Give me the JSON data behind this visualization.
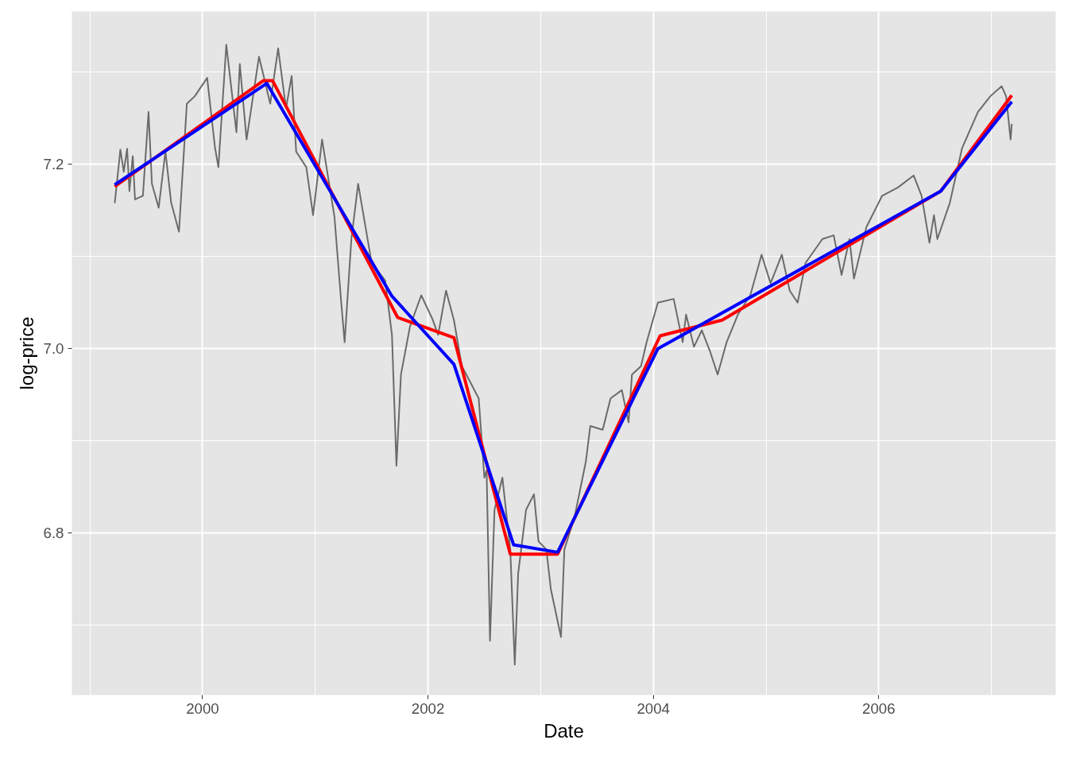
{
  "chart_data": {
    "type": "line",
    "xlabel": "Date",
    "ylabel": "log-price",
    "xlim": [
      1998.84,
      2007.57
    ],
    "ylim": [
      6.624,
      7.366
    ],
    "xticks": [
      {
        "value": 1999,
        "label": null
      },
      2000,
      {
        "value": 2001,
        "label": null
      },
      2002,
      {
        "value": 2003,
        "label": null
      },
      2004,
      {
        "value": 2005,
        "label": null
      },
      2006,
      {
        "value": 2007,
        "label": null
      }
    ],
    "yticks": [
      {
        "value": 6.7,
        "label": null
      },
      {
        "value": 6.8,
        "label": "6.8"
      },
      {
        "value": 6.9,
        "label": null
      },
      {
        "value": 7.0,
        "label": "7.0"
      },
      {
        "value": 7.1,
        "label": null
      },
      {
        "value": 7.2,
        "label": "7.2"
      },
      {
        "value": 7.3,
        "label": null
      }
    ],
    "grid": true,
    "line_style": "solid",
    "marker": "none",
    "series": [
      {
        "color": "#6b6b6b",
        "x": [
          1999.22,
          1999.27,
          1999.3,
          1999.33,
          1999.35,
          1999.38,
          1999.4,
          1999.47,
          1999.52,
          1999.55,
          1999.61,
          1999.67,
          1999.72,
          1999.79,
          1999.86,
          1999.93,
          2000.04,
          2000.11,
          2000.14,
          2000.21,
          2000.3,
          2000.33,
          2000.39,
          2000.5,
          2000.6,
          2000.67,
          2000.74,
          2000.79,
          2000.83,
          2000.92,
          2000.98,
          2001.06,
          2001.17,
          2001.23,
          2001.26,
          2001.32,
          2001.38,
          2001.5,
          2001.62,
          2001.68,
          2001.72,
          2001.76,
          2001.84,
          2001.94,
          2002.04,
          2002.09,
          2002.16,
          2002.23,
          2002.3,
          2002.34,
          2002.45,
          2002.5,
          2002.52,
          2002.55,
          2002.59,
          2002.66,
          2002.73,
          2002.77,
          2002.8,
          2002.87,
          2002.94,
          2002.98,
          2003.05,
          2003.09,
          2003.18,
          2003.21,
          2003.3,
          2003.4,
          2003.44,
          2003.55,
          2003.62,
          2003.72,
          2003.78,
          2003.81,
          2003.89,
          2003.94,
          2004.04,
          2004.18,
          2004.26,
          2004.29,
          2004.36,
          2004.43,
          2004.5,
          2004.57,
          2004.65,
          2004.75,
          2004.86,
          2004.96,
          2005.04,
          2005.14,
          2005.21,
          2005.28,
          2005.35,
          2005.5,
          2005.6,
          2005.67,
          2005.74,
          2005.78,
          2005.89,
          2006.03,
          2006.17,
          2006.31,
          2006.38,
          2006.45,
          2006.49,
          2006.52,
          2006.63,
          2006.74,
          2006.88,
          2006.99,
          2007.09,
          2007.13,
          2007.17,
          2007.18
        ],
        "values": [
          7.158,
          7.216,
          7.192,
          7.217,
          7.171,
          7.209,
          7.162,
          7.166,
          7.257,
          7.179,
          7.153,
          7.214,
          7.159,
          7.127,
          7.266,
          7.274,
          7.294,
          7.218,
          7.197,
          7.33,
          7.235,
          7.309,
          7.227,
          7.317,
          7.266,
          7.326,
          7.261,
          7.296,
          7.214,
          7.197,
          7.145,
          7.227,
          7.143,
          7.05,
          7.007,
          7.119,
          7.179,
          7.093,
          7.074,
          7.015,
          6.873,
          6.972,
          7.024,
          7.058,
          7.032,
          7.015,
          7.063,
          7.031,
          6.981,
          6.972,
          6.946,
          6.86,
          6.868,
          6.683,
          6.825,
          6.86,
          6.782,
          6.657,
          6.756,
          6.825,
          6.842,
          6.791,
          6.782,
          6.739,
          6.687,
          6.782,
          6.817,
          6.877,
          6.916,
          6.912,
          6.946,
          6.955,
          6.92,
          6.972,
          6.981,
          7.007,
          7.05,
          7.054,
          7.007,
          7.037,
          7.002,
          7.02,
          6.998,
          6.972,
          7.007,
          7.037,
          7.058,
          7.102,
          7.071,
          7.102,
          7.063,
          7.05,
          7.093,
          7.119,
          7.123,
          7.08,
          7.119,
          7.076,
          7.132,
          7.166,
          7.175,
          7.188,
          7.166,
          7.115,
          7.145,
          7.119,
          7.158,
          7.218,
          7.257,
          7.274,
          7.285,
          7.274,
          7.227,
          7.244
        ]
      },
      {
        "color": "#ff0000",
        "x": [
          1999.22,
          2000.54,
          2000.62,
          2001.73,
          2002.23,
          2002.73,
          2003.15,
          2004.06,
          2004.61,
          2006.55,
          2007.18
        ],
        "values": [
          7.176,
          7.291,
          7.291,
          7.034,
          7.012,
          6.777,
          6.777,
          7.014,
          7.031,
          7.171,
          7.275
        ]
      },
      {
        "color": "#0000ff",
        "x": [
          1999.22,
          2000.57,
          2001.68,
          2002.23,
          2002.76,
          2003.15,
          2004.04,
          2006.55,
          2007.18
        ],
        "values": [
          7.178,
          7.288,
          7.057,
          6.983,
          6.787,
          6.779,
          7.0,
          7.171,
          7.268
        ]
      }
    ]
  }
}
